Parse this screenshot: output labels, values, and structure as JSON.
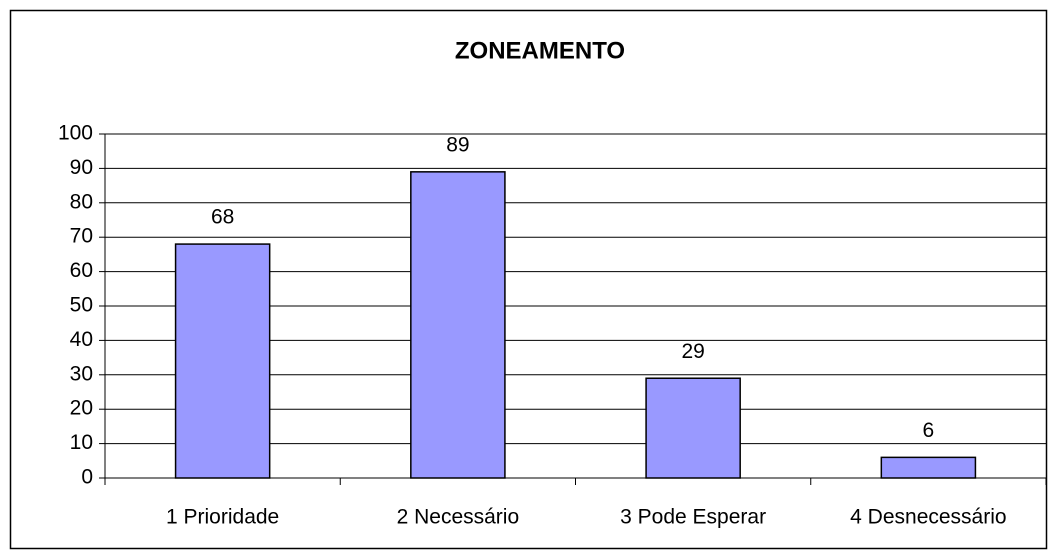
{
  "chart_data": {
    "type": "bar",
    "title": "ZONEAMENTO",
    "categories": [
      "1 Prioridade",
      "2 Necessário",
      "3 Pode Esperar",
      "4 Desnecessário"
    ],
    "values": [
      68,
      89,
      29,
      6
    ],
    "color": "#9999ff",
    "ylim": [
      0,
      100
    ],
    "yticks": [
      0,
      10,
      20,
      30,
      40,
      50,
      60,
      70,
      80,
      90,
      100
    ],
    "grid": true
  }
}
